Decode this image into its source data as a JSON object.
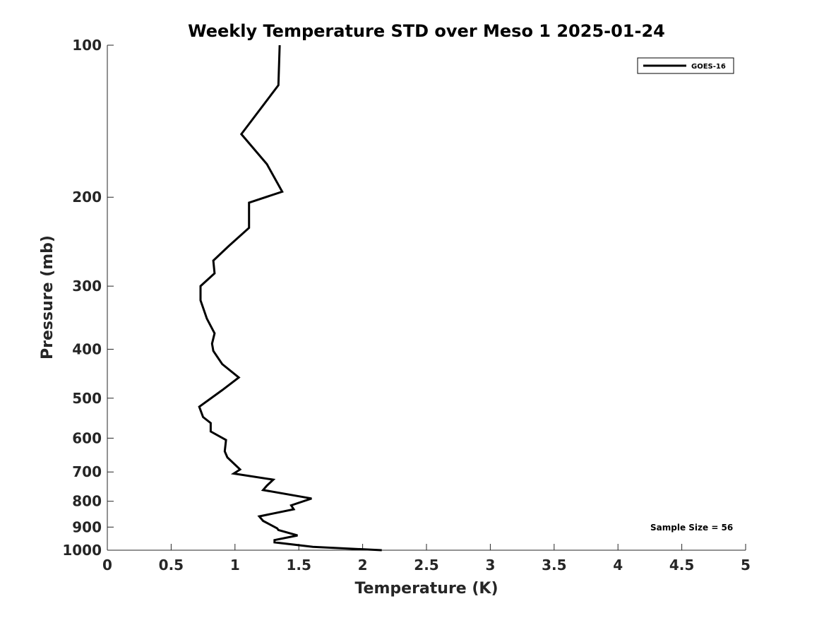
{
  "chart_data": {
    "type": "line",
    "title": "Weekly Temperature STD over Meso 1 2025-01-24",
    "xlabel": "Temperature (K)",
    "ylabel": "Pressure (mb)",
    "xlim": [
      0,
      5
    ],
    "ylim": [
      100,
      1000
    ],
    "yscale": "log",
    "y_reversed": true,
    "grid": false,
    "x_ticks": [
      0,
      0.5,
      1,
      1.5,
      2,
      2.5,
      3,
      3.5,
      4,
      4.5,
      5
    ],
    "x_tick_labels": [
      "0",
      "0.5",
      "1",
      "1.5",
      "2",
      "2.5",
      "3",
      "3.5",
      "4",
      "4.5",
      "5"
    ],
    "y_ticks": [
      100,
      200,
      300,
      400,
      500,
      600,
      700,
      800,
      900,
      1000
    ],
    "y_tick_labels": [
      "100",
      "200",
      "300",
      "400",
      "500",
      "600",
      "700",
      "800",
      "900",
      "1000"
    ],
    "legend": {
      "position": "top-right",
      "entries": [
        "GOES-16"
      ]
    },
    "annotation": "Sample Size = 56",
    "series": [
      {
        "name": "GOES-16",
        "color": "#000000",
        "x": [
          1.35,
          1.34,
          1.05,
          1.25,
          1.37,
          1.11,
          1.11,
          0.95,
          0.83,
          0.84,
          0.73,
          0.73,
          0.78,
          0.84,
          0.82,
          0.83,
          0.9,
          1.03,
          0.9,
          0.72,
          0.75,
          0.81,
          0.81,
          0.93,
          0.92,
          0.94,
          1.04,
          0.99,
          1.3,
          1.25,
          1.22,
          1.6,
          1.44,
          1.46,
          1.19,
          1.22,
          1.33,
          1.34,
          1.49,
          1.31,
          1.31,
          1.61,
          2.15
        ],
        "y": [
          100,
          120,
          150,
          172,
          195,
          205,
          230,
          250,
          267,
          283,
          300,
          320,
          348,
          372,
          390,
          403,
          428,
          455,
          482,
          520,
          545,
          560,
          582,
          605,
          637,
          655,
          692,
          705,
          725,
          745,
          760,
          790,
          815,
          830,
          857,
          875,
          905,
          912,
          935,
          955,
          965,
          985,
          1000
        ]
      }
    ]
  }
}
